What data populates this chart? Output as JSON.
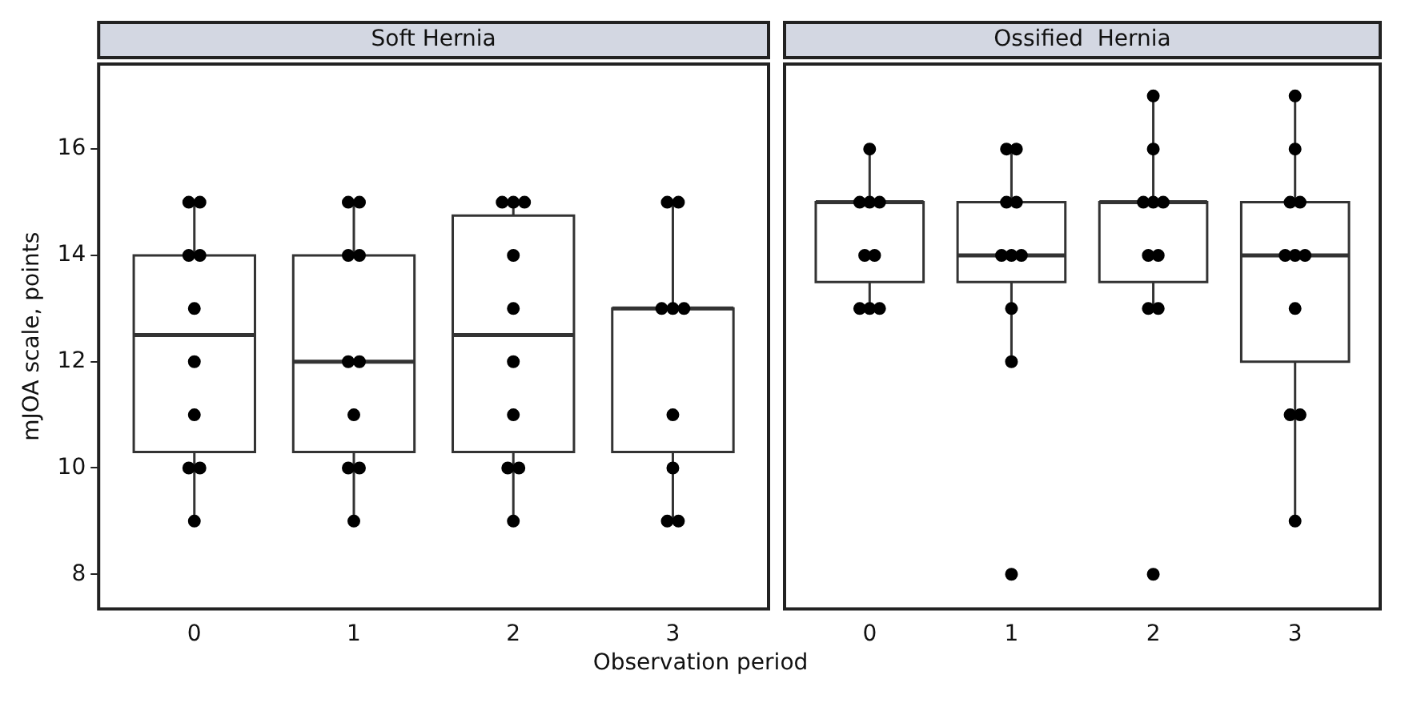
{
  "chart_data": [
    {
      "type": "box",
      "title": "Soft Hernia",
      "categories": [
        "0",
        "1",
        "2",
        "3"
      ],
      "xlabel": "Observation period",
      "ylabel": "mJOA scale, points",
      "ylim": [
        7.35,
        17.6
      ],
      "yticks": [
        8,
        10,
        12,
        14,
        16
      ],
      "grid": false,
      "legend": false,
      "marker": "circle",
      "series": [
        {
          "color": "#333333",
          "boxes": [
            {
              "low": 9,
              "q1": 10.3,
              "median": 12.5,
              "q3": 14,
              "high": 15
            },
            {
              "low": 9,
              "q1": 10.3,
              "median": 12,
              "q3": 14,
              "high": 15
            },
            {
              "low": 9,
              "q1": 10.3,
              "median": 12.5,
              "q3": 14.75,
              "high": 15
            },
            {
              "low": 9,
              "q1": 10.3,
              "median": 13,
              "q3": 13,
              "high": 15
            }
          ]
        },
        {
          "type": "scatter",
          "color": "#000000",
          "x": [
            "0",
            "0",
            "0",
            "0",
            "0",
            "0",
            "0",
            "0",
            "0",
            "0",
            "1",
            "1",
            "1",
            "1",
            "1",
            "1",
            "1",
            "1",
            "1",
            "1",
            "2",
            "2",
            "2",
            "2",
            "2",
            "2",
            "2",
            "2",
            "2",
            "2",
            "3",
            "3",
            "3",
            "3",
            "3",
            "3",
            "3",
            "3",
            "3"
          ],
          "values": [
            15,
            15,
            14,
            14,
            13,
            12,
            11,
            10,
            10,
            9,
            15,
            15,
            14,
            14,
            12,
            12,
            11,
            10,
            10,
            9,
            15,
            15,
            15,
            14,
            13,
            12,
            11,
            10,
            10,
            9,
            15,
            15,
            13,
            13,
            13,
            11,
            10,
            9,
            9
          ]
        }
      ]
    },
    {
      "type": "box",
      "title": "Ossified  Hernia",
      "categories": [
        "0",
        "1",
        "2",
        "3"
      ],
      "ylim": [
        7.35,
        17.6
      ],
      "yticks": [
        8,
        10,
        12,
        14,
        16
      ],
      "tick_labels": "x",
      "grid": false,
      "legend": false,
      "marker": "circle",
      "series": [
        {
          "color": "#333333",
          "boxes": [
            {
              "low": 13,
              "q1": 13.5,
              "median": 15,
              "q3": 15,
              "high": 16
            },
            {
              "low": 12,
              "q1": 13.5,
              "median": 14,
              "q3": 15,
              "high": 16
            },
            {
              "low": 13,
              "q1": 13.5,
              "median": 15,
              "q3": 15,
              "high": 17
            },
            {
              "low": 9,
              "q1": 12,
              "median": 14,
              "q3": 15,
              "high": 17
            }
          ]
        },
        {
          "type": "scatter",
          "color": "#000000",
          "x": [
            "0",
            "0",
            "0",
            "0",
            "0",
            "0",
            "0",
            "0",
            "0",
            "1",
            "1",
            "1",
            "1",
            "1",
            "1",
            "1",
            "1",
            "1",
            "1",
            "2",
            "2",
            "2",
            "2",
            "2",
            "2",
            "2",
            "2",
            "2",
            "2",
            "3",
            "3",
            "3",
            "3",
            "3",
            "3",
            "3",
            "3",
            "3",
            "3",
            "3"
          ],
          "values": [
            16,
            15,
            15,
            15,
            14,
            14,
            13,
            13,
            13,
            16,
            16,
            15,
            15,
            14,
            14,
            14,
            13,
            12,
            8,
            17,
            16,
            15,
            15,
            15,
            14,
            14,
            13,
            13,
            8,
            17,
            16,
            15,
            15,
            14,
            14,
            14,
            13,
            11,
            11,
            9
          ]
        }
      ]
    }
  ]
}
